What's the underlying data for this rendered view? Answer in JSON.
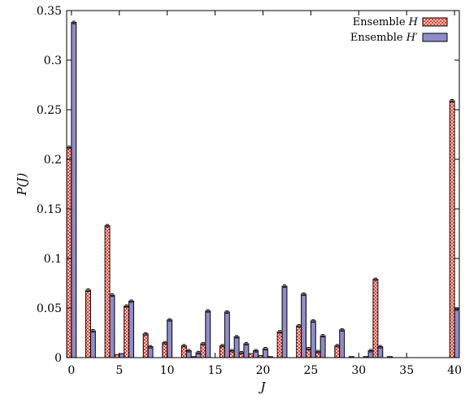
{
  "chart_data": {
    "type": "bar",
    "xlabel": "J",
    "ylabel": "P(J)",
    "xlim": [
      -0.5,
      40.5
    ],
    "ylim": [
      0,
      0.35
    ],
    "xticks": [
      "0",
      "5",
      "10",
      "15",
      "20",
      "25",
      "30",
      "35",
      "40"
    ],
    "yticks": [
      "0",
      "0.05",
      "0.1",
      "0.15",
      "0.2",
      "0.25",
      "0.3",
      "0.35"
    ],
    "legend_position": "top-right",
    "grid": false,
    "x": [
      0,
      1,
      2,
      3,
      4,
      5,
      6,
      7,
      8,
      9,
      10,
      11,
      12,
      13,
      14,
      15,
      16,
      17,
      18,
      19,
      20,
      21,
      22,
      23,
      24,
      25,
      26,
      27,
      28,
      29,
      30,
      31,
      32,
      33,
      34,
      35,
      36,
      37,
      38,
      39,
      40
    ],
    "series": [
      {
        "name": "Ensemble H",
        "style": "crosshatch",
        "fill_color": "#ffffff",
        "pattern_color": "#e8321f",
        "values": [
          0.212,
          0,
          0.068,
          0,
          0.133,
          0.003,
          0.052,
          0,
          0.024,
          0,
          0.015,
          0,
          0.012,
          0.001,
          0.014,
          0,
          0.012,
          0.007,
          0.005,
          0.004,
          0.002,
          0.001,
          0.026,
          0,
          0.032,
          0.009,
          0.006,
          0,
          0.012,
          0,
          0,
          0.001,
          0.079,
          0,
          0,
          0,
          0,
          0,
          0,
          0,
          0.259
        ]
      },
      {
        "name": "Ensemble H′",
        "style": "solid",
        "fill_color": "#8e8dca",
        "values": [
          0.338,
          0,
          0.027,
          0,
          0.063,
          0.004,
          0.057,
          0,
          0.011,
          0,
          0.038,
          0,
          0.007,
          0.005,
          0.047,
          0,
          0.046,
          0.021,
          0.014,
          0.007,
          0.009,
          0,
          0.072,
          0,
          0.064,
          0.037,
          0.022,
          0,
          0.028,
          0.001,
          0,
          0.007,
          0.011,
          0.001,
          0,
          0,
          0,
          0,
          0,
          0,
          0.049
        ]
      }
    ]
  },
  "legend": {
    "items": [
      {
        "prefix": "Ensemble ",
        "symbol": "H",
        "prime": ""
      },
      {
        "prefix": "Ensemble ",
        "symbol": "H",
        "prime": "′"
      }
    ]
  }
}
